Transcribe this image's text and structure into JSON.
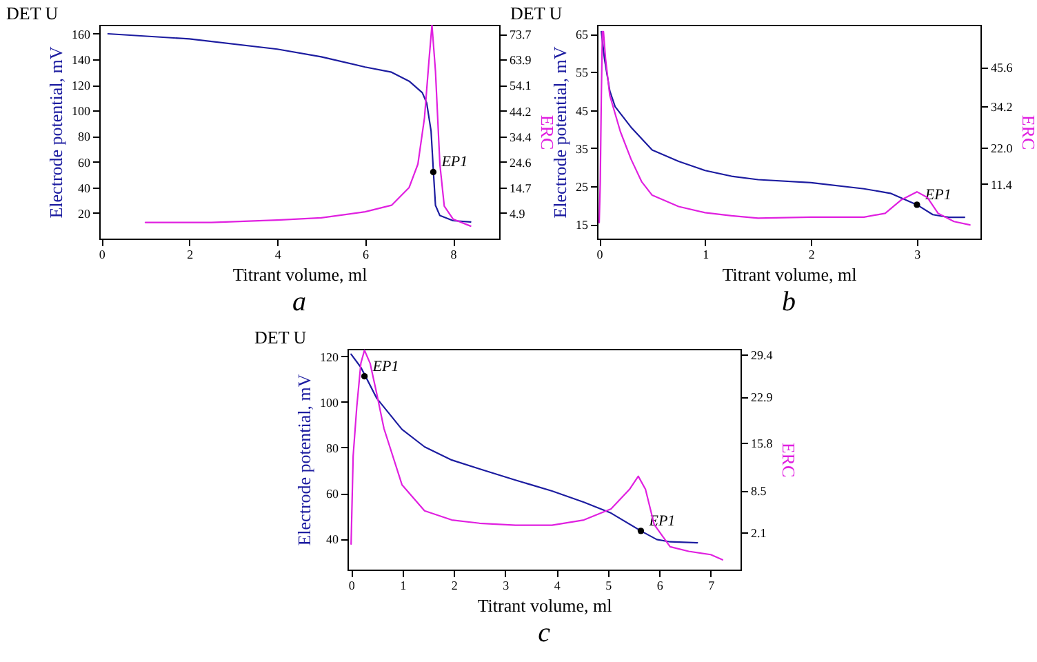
{
  "chart_data": [
    {
      "type": "line",
      "title": "DET U",
      "xlabel": "Titrant volume, ml",
      "ylabel": "Electrode potential, mV",
      "y2label": "ERC",
      "xlim": [
        -0.05,
        9.05
      ],
      "xticks": [
        0,
        2,
        4,
        6,
        8
      ],
      "ylim": [
        0,
        167
      ],
      "yticks": [
        20,
        40,
        60,
        80,
        100,
        120,
        140,
        160
      ],
      "y2lim": [
        -4.9,
        77.2
      ],
      "y2ticks": [
        4.9,
        14.7,
        24.6,
        34.4,
        44.2,
        54.1,
        63.9,
        73.7
      ],
      "series": [
        {
          "color": "#1c1ca0",
          "x": [
            0.15,
            2,
            4,
            5,
            6,
            6.6,
            7,
            7.3,
            7.4,
            7.5,
            7.55,
            7.6,
            7.7,
            8,
            8.4
          ],
          "values": [
            160,
            156,
            148,
            142,
            134,
            130,
            123,
            114,
            106,
            84,
            54,
            26,
            18,
            14,
            13
          ]
        },
        {
          "color": "#e020e0",
          "axis": "y2",
          "x": [
            1,
            2.5,
            4,
            5,
            6,
            6.6,
            7,
            7.2,
            7.35,
            7.45,
            7.52,
            7.6,
            7.7,
            7.8,
            8,
            8.4
          ],
          "values": [
            1.3,
            1.3,
            2.2,
            3.1,
            5.4,
            7.9,
            14.7,
            23.7,
            41.5,
            63,
            77.2,
            59.4,
            23.7,
            7.6,
            2.6,
            -0.1
          ]
        }
      ],
      "annotations": [
        {
          "text": "EP1",
          "x": 7.55,
          "y": 52
        },
        "a"
      ]
    },
    {
      "type": "line",
      "title": "DET U",
      "xlabel": "Titrant volume, ml",
      "ylabel": "Electrode potential, mV",
      "y2label": "ERC",
      "xlim": [
        -0.02,
        3.6
      ],
      "xticks": [
        0,
        1,
        2,
        3
      ],
      "ylim": [
        11.2,
        67.4
      ],
      "yticks": [
        15,
        25,
        35,
        45,
        55,
        65
      ],
      "y2lim": [
        -4.6,
        58
      ],
      "y2ticks": [
        11.4,
        {
          "value": 22,
          "label": "22.0"
        },
        34.2,
        45.6
      ],
      "series": [
        {
          "color": "#1c1ca0",
          "x": [
            0.02,
            0.05,
            0.1,
            0.15,
            0.3,
            0.5,
            0.75,
            1,
            1.25,
            1.5,
            2,
            2.5,
            2.75,
            3,
            3.15,
            3.3,
            3.45
          ],
          "values": [
            65.6,
            58.4,
            50,
            45.9,
            40.5,
            34.5,
            31.5,
            29.1,
            27.6,
            26.7,
            25.9,
            24.3,
            23.1,
            20.1,
            17.5,
            16.8,
            16.8
          ]
        },
        {
          "color": "#e020e0",
          "axis": "y2",
          "x": [
            0,
            0.01,
            0.02,
            0.03,
            0.04,
            0.06,
            0.1,
            0.2,
            0.3,
            0.4,
            0.5,
            0.75,
            1,
            1.25,
            1.5,
            2,
            2.5,
            2.7,
            2.85,
            3,
            3.1,
            3.2,
            3.35,
            3.5
          ],
          "values": [
            0.1,
            12,
            37.3,
            56,
            56,
            48,
            37.3,
            26.7,
            18.7,
            12.1,
            8.1,
            4.8,
            3,
            2.1,
            1.4,
            1.7,
            1.7,
            2.8,
            6.7,
            9.1,
            7.4,
            2.8,
            0.4,
            -0.6
          ]
        }
      ],
      "annotations": [
        {
          "text": "EP1",
          "x": 3,
          "y": 20.1
        },
        "b"
      ]
    },
    {
      "type": "line",
      "title": "DET U",
      "xlabel": "Titrant volume, ml",
      "ylabel": "Electrode potential, mV",
      "y2label": "ERC",
      "xlim": [
        -0.07,
        7.58
      ],
      "xticks": [
        0,
        1,
        2,
        3,
        4,
        5,
        6,
        7
      ],
      "ylim": [
        26.4,
        123.3
      ],
      "yticks": [
        40,
        60,
        80,
        100,
        120
      ],
      "y2lim": [
        -3.6,
        30.2
      ],
      "y2ticks": [
        2.1,
        8.5,
        15.8,
        22.9,
        29.4
      ],
      "series": [
        {
          "color": "#1c1ca0",
          "x": [
            0,
            0.19,
            0.28,
            0.5,
            0.99,
            1.43,
            1.96,
            2.5,
            3.2,
            3.91,
            4.53,
            5.06,
            5.64,
            5.95,
            6.21,
            6.74
          ],
          "values": [
            121,
            115.2,
            111.3,
            101.6,
            88,
            80.3,
            74.5,
            70.6,
            65.7,
            60.9,
            56,
            51.2,
            43.4,
            39.6,
            38.6,
            38.2
          ]
        },
        {
          "color": "#e020e0",
          "axis": "y2",
          "x": [
            0,
            0.04,
            0.11,
            0.19,
            0.26,
            0.37,
            0.5,
            0.64,
            0.99,
            1.43,
            1.96,
            2.5,
            3.2,
            3.91,
            4.53,
            5.06,
            5.42,
            5.59,
            5.73,
            5.9,
            6.21,
            6.57,
            7.0,
            7.23
          ],
          "values": [
            0.3,
            13.8,
            21.3,
            28,
            30,
            28,
            23.3,
            18,
            9.4,
            5.4,
            4,
            3.5,
            3.2,
            3.2,
            4,
            5.7,
            8.7,
            10.7,
            8.7,
            3.3,
            -0.1,
            -0.8,
            -1.3,
            -2.1
          ]
        }
      ],
      "annotations": [
        {
          "text": "EP1",
          "x": 0.26,
          "y": 111.3
        },
        {
          "text": "EP1",
          "x": 5.64,
          "y": 43.4
        },
        "c"
      ]
    }
  ]
}
